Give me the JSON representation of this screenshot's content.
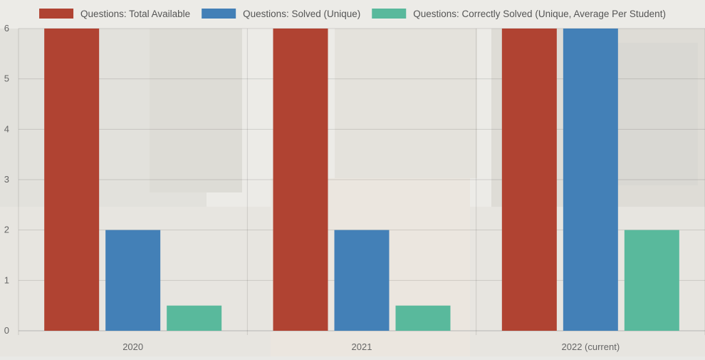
{
  "chart_data": {
    "type": "bar",
    "categories": [
      "2020",
      "2021",
      "2022 (current)"
    ],
    "series": [
      {
        "name": "Questions: Total Available",
        "values": [
          6,
          6,
          6
        ],
        "color": "#b04332"
      },
      {
        "name": "Questions: Solved (Unique)",
        "values": [
          2,
          2,
          6
        ],
        "color": "#4380b7"
      },
      {
        "name": "Questions: Correctly Solved (Unique, Average Per Student)",
        "values": [
          0.5,
          0.5,
          2
        ],
        "color": "#59b99c"
      }
    ],
    "ylim": [
      0,
      6
    ],
    "yticks": [
      0,
      1,
      2,
      3,
      4,
      5,
      6
    ],
    "grid": true,
    "legend_position": "top",
    "title": "",
    "xlabel": "",
    "ylabel": ""
  },
  "background": {
    "description_icon": "campus-building-photo-faded"
  }
}
